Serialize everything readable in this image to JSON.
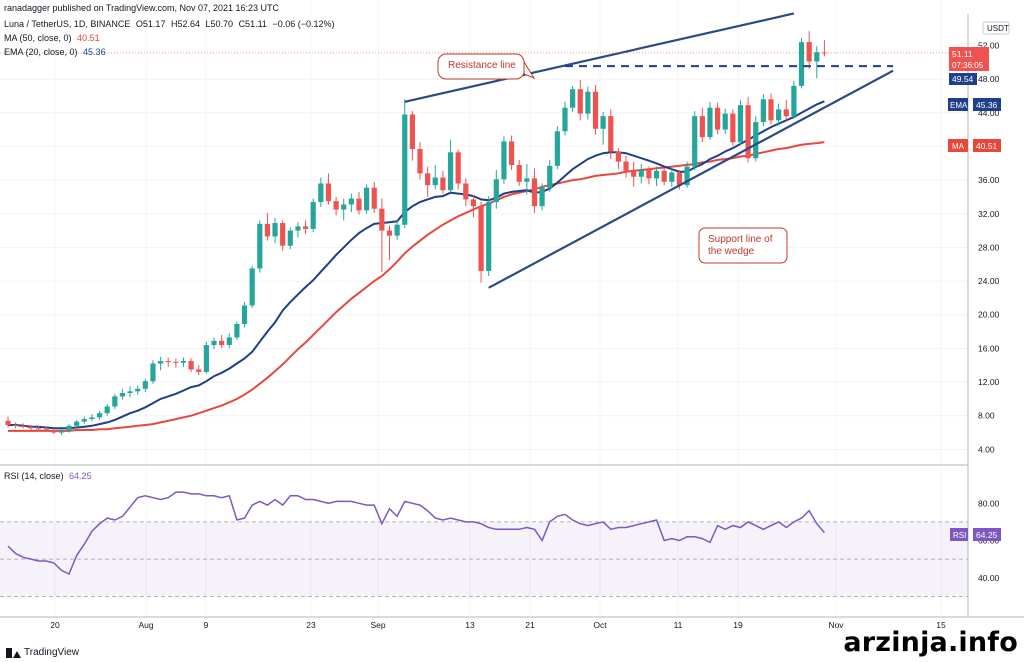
{
  "header": {
    "publisher": "ranadagger published on TradingView.com, Nov 07, 2021 16:23 UTC",
    "symbol": "Luna / TetherUS, 1D, BINANCE",
    "open": "O51.17",
    "high": "H52.64",
    "low": "L50.70",
    "close": "C51.11",
    "change": "−0.06 (−0.12%)",
    "ma_label": "MA (50, close, 0)",
    "ma_value": "40.51",
    "ema_label": "EMA (20, close, 0)",
    "ema_value": "45.36",
    "rsi_label": "RSI (14, close)",
    "rsi_value": "64.25"
  },
  "axis": {
    "currency": "USDT",
    "last_price": "51.11",
    "countdown": "07:36:05",
    "level_label": "49.54",
    "ema_tag": "EMA",
    "ema_value": "45.36",
    "ma_tag": "MA",
    "ma_value": "40.51",
    "rsi_tag": "RSI",
    "rsi_value": "64.25",
    "top_tick": "52.00"
  },
  "annotations": {
    "resistance": "Resistance line",
    "support_1": "Support line of",
    "support_2": "the wedge"
  },
  "footer": {
    "brand": "TradingView",
    "watermark": "arzinja.info"
  },
  "colors": {
    "up": "#26a69a",
    "down": "#ef5350",
    "ema": "#1e3f8a",
    "ma": "#e8473b",
    "rsi": "#7e57c2",
    "trendline": "#2b4a86",
    "level": "#1e3f8a",
    "annotation": "#c0392b"
  },
  "chart_data": [
    {
      "type": "candlestick",
      "title": "Luna / TetherUS, 1D, BINANCE",
      "ylim": [
        2.5,
        55.5
      ],
      "y_ticks": [
        4,
        8,
        12,
        16,
        20,
        24,
        28,
        32,
        36,
        40,
        44,
        48
      ],
      "x_ticks": [
        "20",
        "Aug",
        "9",
        "23",
        "Sep",
        "13",
        "21",
        "Oct",
        "11",
        "19",
        "Nov",
        "15"
      ],
      "ohlc": [
        [
          7.4,
          7.9,
          6.6,
          6.9
        ],
        [
          6.9,
          7.2,
          6.5,
          6.8
        ],
        [
          6.8,
          7.1,
          6.5,
          6.7
        ],
        [
          6.7,
          6.9,
          6.3,
          6.5
        ],
        [
          6.5,
          6.8,
          6.2,
          6.4
        ],
        [
          6.4,
          6.7,
          6.1,
          6.3
        ],
        [
          6.3,
          6.5,
          5.8,
          6.0
        ],
        [
          6.0,
          6.4,
          5.7,
          6.2
        ],
        [
          6.2,
          7.0,
          6.0,
          6.8
        ],
        [
          6.8,
          7.5,
          6.6,
          7.3
        ],
        [
          7.3,
          7.9,
          7.0,
          7.6
        ],
        [
          7.6,
          8.2,
          7.3,
          7.8
        ],
        [
          7.8,
          8.6,
          7.5,
          8.3
        ],
        [
          8.3,
          9.4,
          8.0,
          9.1
        ],
        [
          9.1,
          10.6,
          8.8,
          10.3
        ],
        [
          10.3,
          11.2,
          9.9,
          10.7
        ],
        [
          10.7,
          11.5,
          10.2,
          10.9
        ],
        [
          10.9,
          11.6,
          10.5,
          11.2
        ],
        [
          11.2,
          12.4,
          10.8,
          12.1
        ],
        [
          12.1,
          14.6,
          11.8,
          14.2
        ],
        [
          14.2,
          15.0,
          13.4,
          14.5
        ],
        [
          14.5,
          14.9,
          13.8,
          14.4
        ],
        [
          14.4,
          14.8,
          13.7,
          14.3
        ],
        [
          14.3,
          14.9,
          13.8,
          14.5
        ],
        [
          14.5,
          14.8,
          13.2,
          13.5
        ],
        [
          13.5,
          14.0,
          12.8,
          13.2
        ],
        [
          13.2,
          16.8,
          13.0,
          16.4
        ],
        [
          16.4,
          17.3,
          15.9,
          16.9
        ],
        [
          16.9,
          17.6,
          16.0,
          16.4
        ],
        [
          16.4,
          17.8,
          16.0,
          17.3
        ],
        [
          17.3,
          19.2,
          17.0,
          18.9
        ],
        [
          18.9,
          21.5,
          18.5,
          21.1
        ],
        [
          21.1,
          25.8,
          20.8,
          25.5
        ],
        [
          25.5,
          31.2,
          25.0,
          30.8
        ],
        [
          30.8,
          32.1,
          28.8,
          29.3
        ],
        [
          29.3,
          31.5,
          28.5,
          30.9
        ],
        [
          30.9,
          31.2,
          27.6,
          28.2
        ],
        [
          28.2,
          30.4,
          27.8,
          30.0
        ],
        [
          30.0,
          31.0,
          29.2,
          30.5
        ],
        [
          30.5,
          31.2,
          29.6,
          30.2
        ],
        [
          30.2,
          33.8,
          29.8,
          33.4
        ],
        [
          33.4,
          36.3,
          32.8,
          35.6
        ],
        [
          35.6,
          36.8,
          33.1,
          33.5
        ],
        [
          33.5,
          34.0,
          31.8,
          32.5
        ],
        [
          32.5,
          33.8,
          31.2,
          33.1
        ],
        [
          33.1,
          34.4,
          32.2,
          33.8
        ],
        [
          33.8,
          34.6,
          31.9,
          32.4
        ],
        [
          32.4,
          35.5,
          32.0,
          35.1
        ],
        [
          35.1,
          35.8,
          32.1,
          32.6
        ],
        [
          32.6,
          33.8,
          25.1,
          30.0
        ],
        [
          30.0,
          30.6,
          26.5,
          29.4
        ],
        [
          29.4,
          31.3,
          28.9,
          30.7
        ],
        [
          30.7,
          45.6,
          30.3,
          43.8
        ],
        [
          43.8,
          44.2,
          38.3,
          39.7
        ],
        [
          39.7,
          40.5,
          36.1,
          36.8
        ],
        [
          36.8,
          37.6,
          34.0,
          35.4
        ],
        [
          35.4,
          37.8,
          34.9,
          36.3
        ],
        [
          36.3,
          37.1,
          34.4,
          34.8
        ],
        [
          34.8,
          40.8,
          34.5,
          39.3
        ],
        [
          39.3,
          39.6,
          34.9,
          35.6
        ],
        [
          35.6,
          36.2,
          32.9,
          33.7
        ],
        [
          33.7,
          34.2,
          31.6,
          32.9
        ],
        [
          32.9,
          33.4,
          23.8,
          25.2
        ],
        [
          25.2,
          34.1,
          24.6,
          33.4
        ],
        [
          33.4,
          37.2,
          32.6,
          36.1
        ],
        [
          36.1,
          41.2,
          35.5,
          40.6
        ],
        [
          40.6,
          41.3,
          37.2,
          37.8
        ],
        [
          37.8,
          38.4,
          35.3,
          35.8
        ],
        [
          35.8,
          37.9,
          34.3,
          36.2
        ],
        [
          36.2,
          37.4,
          32.1,
          32.9
        ],
        [
          32.9,
          35.6,
          32.4,
          35.1
        ],
        [
          35.1,
          38.4,
          34.6,
          37.7
        ],
        [
          37.7,
          42.4,
          37.3,
          41.8
        ],
        [
          41.8,
          45.3,
          41.3,
          44.6
        ],
        [
          44.6,
          47.2,
          44.1,
          46.8
        ],
        [
          46.8,
          47.9,
          43.1,
          43.9
        ],
        [
          43.9,
          47.1,
          43.2,
          46.5
        ],
        [
          46.5,
          47.3,
          41.4,
          42.1
        ],
        [
          42.1,
          44.1,
          40.2,
          43.6
        ],
        [
          43.6,
          44.4,
          38.5,
          39.4
        ],
        [
          39.4,
          39.8,
          37.3,
          38.2
        ],
        [
          38.2,
          38.9,
          36.3,
          37.1
        ],
        [
          37.1,
          38.2,
          35.2,
          36.4
        ],
        [
          36.4,
          37.9,
          35.6,
          37.2
        ],
        [
          37.2,
          37.6,
          35.5,
          36.2
        ],
        [
          36.2,
          37.6,
          35.3,
          37.1
        ],
        [
          37.1,
          37.4,
          35.4,
          35.8
        ],
        [
          35.8,
          37.4,
          35.2,
          36.9
        ],
        [
          36.9,
          37.2,
          34.9,
          35.4
        ],
        [
          35.4,
          38.2,
          35.1,
          37.6
        ],
        [
          37.6,
          44.2,
          37.2,
          43.6
        ],
        [
          43.6,
          44.6,
          40.5,
          41.1
        ],
        [
          41.1,
          45.3,
          40.8,
          44.6
        ],
        [
          44.6,
          45.2,
          41.4,
          42.0
        ],
        [
          42.0,
          44.5,
          41.5,
          43.9
        ],
        [
          43.9,
          44.4,
          40.1,
          40.5
        ],
        [
          40.5,
          45.5,
          40.1,
          44.9
        ],
        [
          44.9,
          45.9,
          38.1,
          38.6
        ],
        [
          38.6,
          43.6,
          38.2,
          42.9
        ],
        [
          42.9,
          46.2,
          42.4,
          45.6
        ],
        [
          45.6,
          46.3,
          42.6,
          43.1
        ],
        [
          43.1,
          45.1,
          42.5,
          44.4
        ],
        [
          44.4,
          45.5,
          43.1,
          43.6
        ],
        [
          43.6,
          47.8,
          43.3,
          47.2
        ],
        [
          47.2,
          52.9,
          46.9,
          52.4
        ],
        [
          52.4,
          53.7,
          49.2,
          50.1
        ],
        [
          50.1,
          51.9,
          48.1,
          51.2
        ],
        [
          51.17,
          52.64,
          50.7,
          51.11
        ]
      ],
      "ema_20": [
        6.9,
        6.9,
        6.8,
        6.7,
        6.7,
        6.6,
        6.5,
        6.5,
        6.5,
        6.6,
        6.7,
        6.8,
        7.0,
        7.2,
        7.5,
        7.9,
        8.3,
        8.6,
        9.0,
        9.5,
        10.0,
        10.3,
        10.6,
        11.0,
        11.4,
        11.6,
        12.1,
        12.7,
        13.1,
        13.6,
        14.2,
        14.8,
        15.6,
        16.8,
        18.0,
        19.1,
        20.5,
        21.5,
        22.4,
        23.3,
        24.1,
        25.1,
        26.1,
        27.1,
        28.0,
        28.9,
        29.7,
        30.3,
        30.8,
        30.9,
        31.0,
        31.1,
        32.2,
        32.9,
        33.4,
        33.7,
        34.0,
        34.1,
        34.5,
        34.4,
        34.3,
        34.1,
        33.7,
        33.6,
        33.9,
        34.4,
        34.6,
        34.7,
        34.8,
        34.5,
        34.6,
        35.0,
        35.7,
        36.5,
        37.3,
        37.9,
        38.5,
        38.9,
        39.2,
        39.3,
        39.3,
        39.2,
        38.9,
        38.6,
        38.3,
        38.0,
        37.6,
        37.3,
        37.0,
        37.0,
        37.5,
        37.9,
        38.5,
        38.9,
        39.4,
        39.8,
        40.3,
        40.8,
        41.3,
        41.8,
        42.3,
        42.7,
        43.1,
        43.5,
        44.0,
        44.5,
        45.0,
        45.36
      ],
      "ma_50": [
        6.2,
        6.2,
        6.2,
        6.2,
        6.2,
        6.2,
        6.2,
        6.2,
        6.2,
        6.3,
        6.3,
        6.3,
        6.4,
        6.4,
        6.5,
        6.6,
        6.7,
        6.8,
        6.9,
        7.0,
        7.2,
        7.4,
        7.6,
        7.8,
        8.0,
        8.3,
        8.6,
        8.9,
        9.2,
        9.6,
        10.0,
        10.5,
        11.1,
        11.8,
        12.5,
        13.3,
        14.1,
        15.0,
        15.9,
        16.7,
        17.6,
        18.5,
        19.4,
        20.3,
        21.1,
        21.9,
        22.6,
        23.3,
        24.0,
        24.6,
        25.4,
        26.3,
        27.3,
        28.1,
        28.8,
        29.5,
        30.1,
        30.7,
        31.2,
        31.7,
        32.1,
        32.5,
        32.9,
        33.2,
        33.6,
        34.0,
        34.3,
        34.5,
        34.7,
        34.9,
        35.2,
        35.4,
        35.6,
        35.8,
        36.0,
        36.1,
        36.3,
        36.5,
        36.6,
        36.7,
        36.8,
        37.0,
        37.1,
        37.2,
        37.3,
        37.4,
        37.5,
        37.6,
        37.7,
        37.8,
        37.9,
        38.1,
        38.2,
        38.4,
        38.5,
        38.6,
        38.8,
        38.9,
        39.1,
        39.3,
        39.5,
        39.7,
        39.8,
        40.0,
        40.2,
        40.3,
        40.4,
        40.51
      ],
      "lines": {
        "resistance": [
          [
            52,
            45.3
          ],
          [
            103,
            55.8
          ]
        ],
        "support": [
          [
            63,
            23.2
          ],
          [
            116,
            49.0
          ]
        ],
        "horizontal_level": [
          [
            73,
            49.54
          ],
          [
            116,
            49.54
          ]
        ]
      }
    },
    {
      "type": "line",
      "title": "RSI (14, close)",
      "ylim": [
        20,
        100
      ],
      "y_ticks": [
        40,
        60,
        80
      ],
      "bands": [
        30,
        50,
        70
      ],
      "values": [
        57,
        53,
        51,
        50,
        49,
        49,
        48,
        44,
        42,
        52,
        58,
        65,
        69,
        72,
        71,
        73,
        78,
        83,
        84,
        83,
        82,
        83,
        86,
        86,
        85,
        85,
        84,
        84,
        83,
        84,
        71,
        72,
        79,
        81,
        79,
        82,
        79,
        84,
        84,
        82,
        82,
        81,
        80,
        81,
        81,
        81,
        80,
        79,
        79,
        69,
        77,
        73,
        81,
        80,
        79,
        76,
        72,
        71,
        72,
        71,
        70,
        70,
        69,
        67,
        66,
        66,
        66,
        66,
        67,
        66,
        60,
        70,
        73,
        74,
        71,
        69,
        68,
        69,
        70,
        66,
        67,
        67,
        68,
        69,
        70,
        71,
        60,
        61,
        60,
        62,
        62,
        61,
        59,
        68,
        66,
        68,
        67,
        70,
        68,
        66,
        68,
        70,
        67,
        70,
        72,
        76,
        69,
        64.25
      ],
      "current": 64.25
    }
  ]
}
